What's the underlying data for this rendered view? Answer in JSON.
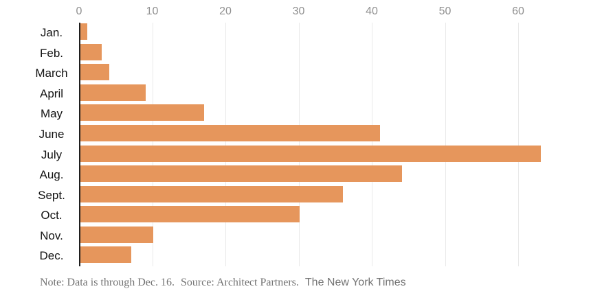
{
  "chart_data": {
    "type": "bar",
    "orientation": "horizontal",
    "title": "",
    "xlabel": "",
    "ylabel": "",
    "categories": [
      "Jan.",
      "Feb.",
      "March",
      "April",
      "May",
      "June",
      "July",
      "Aug.",
      "Sept.",
      "Oct.",
      "Nov.",
      "Dec."
    ],
    "values": [
      1,
      3,
      4,
      9,
      17,
      41,
      63,
      44,
      36,
      30,
      10,
      7
    ],
    "x_ticks": [
      0,
      10,
      20,
      30,
      40,
      50,
      60
    ],
    "xlim": [
      0,
      70
    ],
    "grid": true,
    "legend": "none",
    "bar_color": "#e6965c",
    "axis_line_color": "#1f1f1f",
    "gridline_color": "#e9e9e9",
    "tick_label_color": "#8f8f8f",
    "category_label_color": "#121212"
  },
  "footer": {
    "note": "Note: Data is through Dec. 16.",
    "source": "Source: Architect Partners.",
    "credit": "The New York Times"
  }
}
